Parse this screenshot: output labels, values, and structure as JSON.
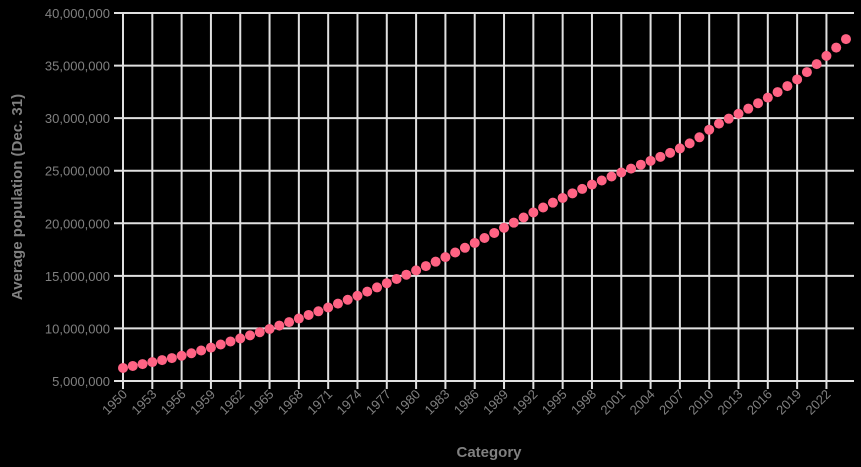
{
  "chart_data": {
    "type": "line",
    "title": "",
    "xlabel": "Category",
    "ylabel": "Average population (Dec. 31)",
    "ylim": [
      5000000,
      40000000
    ],
    "y_ticks": [
      5000000,
      10000000,
      15000000,
      20000000,
      25000000,
      30000000,
      35000000,
      40000000
    ],
    "y_tick_labels": [
      "5,000,000",
      "10,000,000",
      "15,000,000",
      "20,000,000",
      "25,000,000",
      "30,000,000",
      "35,000,000",
      "40,000,000"
    ],
    "x_tick_labels": [
      "1950",
      "1953",
      "1956",
      "1959",
      "1962",
      "1965",
      "1968",
      "1971",
      "1974",
      "1977",
      "1980",
      "1983",
      "1986",
      "1989",
      "1992",
      "1995",
      "1998",
      "2001",
      "2004",
      "2007",
      "2010",
      "2013",
      "2016",
      "2019",
      "2022"
    ],
    "grid": true,
    "legend": "none",
    "point_color": "#ff6384",
    "series": [
      {
        "name": "Average population (Dec. 31)",
        "x": [
          1950,
          1951,
          1952,
          1953,
          1954,
          1955,
          1956,
          1957,
          1958,
          1959,
          1960,
          1961,
          1962,
          1963,
          1964,
          1965,
          1966,
          1967,
          1968,
          1969,
          1970,
          1971,
          1972,
          1973,
          1974,
          1975,
          1976,
          1977,
          1978,
          1979,
          1980,
          1981,
          1982,
          1983,
          1984,
          1985,
          1986,
          1987,
          1988,
          1989,
          1990,
          1991,
          1992,
          1993,
          1994,
          1995,
          1996,
          1997,
          1998,
          1999,
          2000,
          2001,
          2002,
          2003,
          2004,
          2005,
          2006,
          2007,
          2008,
          2009,
          2010,
          2011,
          2012,
          2013,
          2014,
          2015,
          2016,
          2017,
          2018,
          2019,
          2020,
          2021,
          2022,
          2023,
          2024
        ],
        "values": [
          6240000,
          6430000,
          6610000,
          6800000,
          6990000,
          7180000,
          7400000,
          7640000,
          7900000,
          8180000,
          8470000,
          8760000,
          9050000,
          9340000,
          9640000,
          9950000,
          10270000,
          10600000,
          10940000,
          11280000,
          11630000,
          11990000,
          12360000,
          12730000,
          13110000,
          13500000,
          13900000,
          14300000,
          14700000,
          15110000,
          15520000,
          15930000,
          16350000,
          16780000,
          17220000,
          17670000,
          18130000,
          18600000,
          19080000,
          19570000,
          20060000,
          20550000,
          21030000,
          21500000,
          21960000,
          22410000,
          22850000,
          23270000,
          23680000,
          24070000,
          24450000,
          24830000,
          25200000,
          25570000,
          25940000,
          26320000,
          26700000,
          27120000,
          27600000,
          28180000,
          28900000,
          29480000,
          29950000,
          30420000,
          30900000,
          31420000,
          31950000,
          32480000,
          33050000,
          33680000,
          34380000,
          35140000,
          35920000,
          36710000,
          37520000
        ]
      }
    ]
  }
}
